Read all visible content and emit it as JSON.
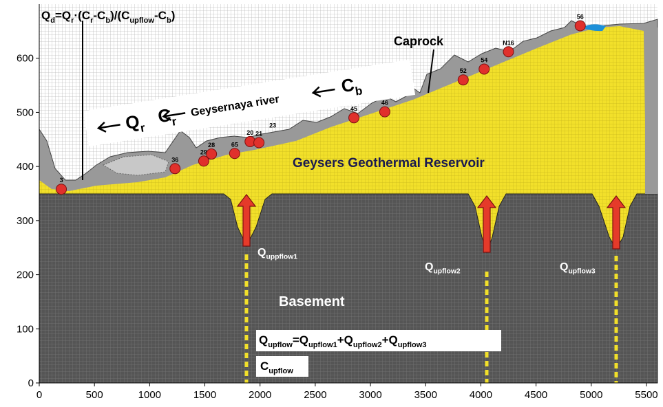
{
  "chart_data": {
    "type": "scatter",
    "x": [
      200,
      1230,
      1490,
      1560,
      1770,
      1910,
      1990,
      2850,
      3130,
      3840,
      4030,
      4250,
      4900
    ],
    "values": [
      358,
      396,
      410,
      423,
      424,
      446,
      444,
      490,
      501,
      560,
      580,
      612,
      660
    ],
    "point_labels": [
      "3",
      "36",
      "29",
      "28",
      "65",
      "20",
      "21",
      "45",
      "46",
      "52",
      "54",
      "N16",
      "56"
    ],
    "extra_label": "23",
    "xlim": [
      0,
      5600
    ],
    "ylim": [
      0,
      700
    ],
    "xticks": [
      0,
      500,
      1000,
      1500,
      2000,
      2500,
      3000,
      3500,
      4000,
      4500,
      5000,
      5500
    ],
    "yticks": [
      0,
      100,
      200,
      300,
      400,
      500,
      600
    ],
    "color": "#e0302c"
  },
  "annotations": {
    "formula": [
      "Q",
      "d",
      "=Q",
      "r",
      "·(C",
      "r",
      "-C",
      "b",
      ")/(C",
      "upflow",
      "-C",
      "b",
      ")"
    ],
    "caprock": "Caprock",
    "river": "Geysernaya river",
    "qr": [
      "Q",
      "r"
    ],
    "cr": [
      "C",
      "r"
    ],
    "cb": [
      "C",
      "b"
    ],
    "reservoir": "Geysers Geothermal Reservoir",
    "basement": "Basement",
    "q1": [
      "Q",
      "uppflow1"
    ],
    "q2": [
      "Q",
      "upflow2"
    ],
    "q3": [
      "Q",
      "upflow3"
    ],
    "qsum": [
      "Q",
      "upflow",
      "=Q",
      "upflow1",
      "+Q",
      "upflow2",
      "+Q",
      "upflow3"
    ],
    "cupflow": [
      "C",
      "upflow"
    ]
  }
}
